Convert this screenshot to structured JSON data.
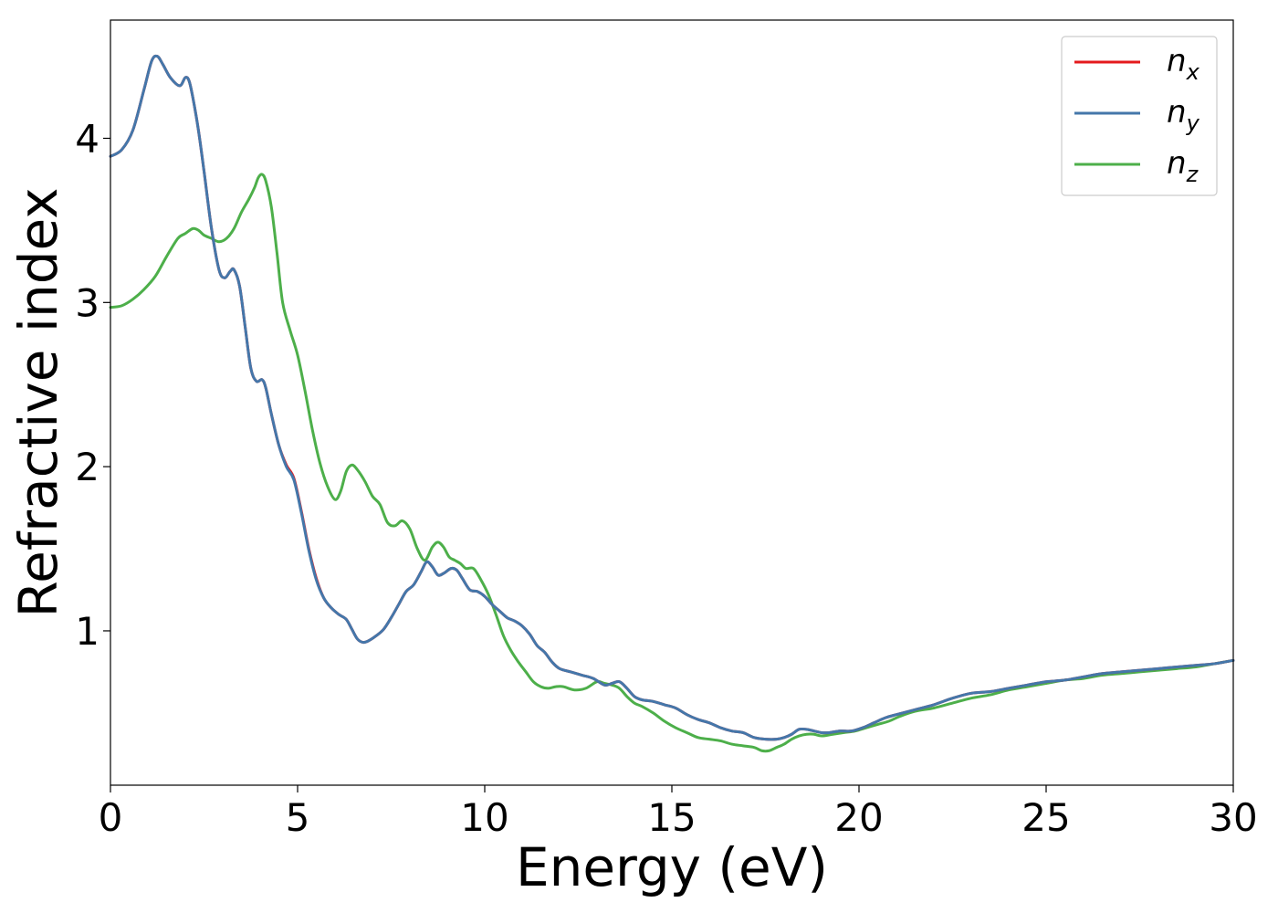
{
  "chart_data": {
    "type": "line",
    "xlabel": "Energy (eV)",
    "ylabel": "Refractive index",
    "xlim": [
      0,
      30
    ],
    "ylim": [
      0.06,
      4.72
    ],
    "xticks": [
      0,
      5,
      10,
      15,
      20,
      25,
      30
    ],
    "yticks": [
      1,
      2,
      3,
      4
    ],
    "grid": false,
    "legend_position": "top-right",
    "series": [
      {
        "name": "n_x",
        "symbol": "n",
        "sub": "x",
        "color": "#e41a1c",
        "x": [
          0,
          0.3,
          0.6,
          0.9,
          1.1,
          1.25,
          1.4,
          1.6,
          1.85,
          2.0,
          2.1,
          2.2,
          2.35,
          2.5,
          2.7,
          2.9,
          3.05,
          3.2,
          3.3,
          3.45,
          3.6,
          3.75,
          3.9,
          4.05,
          4.15,
          4.3,
          4.5,
          4.7,
          4.9,
          5.1,
          5.3,
          5.5,
          5.7,
          5.9,
          6.1,
          6.3,
          6.45,
          6.6,
          6.75,
          6.9,
          7.1,
          7.3,
          7.5,
          7.7,
          7.9,
          8.1,
          8.3,
          8.45,
          8.6,
          8.75,
          8.9,
          9.1,
          9.25,
          9.4,
          9.6,
          9.8,
          10.0,
          10.2,
          10.4,
          10.6,
          10.8,
          11.0,
          11.2,
          11.4,
          11.6,
          11.8,
          12.0,
          12.3,
          12.6,
          12.9,
          13.2,
          13.4,
          13.6,
          13.8,
          14.0,
          14.2,
          14.5,
          14.8,
          15.1,
          15.4,
          15.7,
          16.0,
          16.3,
          16.6,
          16.9,
          17.2,
          17.5,
          17.8,
          18.0,
          18.2,
          18.4,
          18.6,
          18.8,
          19.0,
          19.2,
          19.5,
          19.8,
          20.1,
          20.4,
          20.7,
          21.0,
          21.5,
          22.0,
          22.5,
          23.0,
          23.5,
          24.0,
          24.5,
          25.0,
          25.5,
          26.0,
          26.5,
          27.0,
          27.5,
          28.0,
          28.5,
          29.0,
          29.5,
          30.0
        ],
        "y": [
          3.89,
          3.93,
          4.05,
          4.3,
          4.47,
          4.5,
          4.45,
          4.37,
          4.32,
          4.37,
          4.35,
          4.25,
          4.05,
          3.8,
          3.45,
          3.2,
          3.15,
          3.19,
          3.2,
          3.1,
          2.85,
          2.6,
          2.52,
          2.53,
          2.48,
          2.32,
          2.13,
          2.01,
          1.93,
          1.73,
          1.5,
          1.32,
          1.2,
          1.14,
          1.1,
          1.07,
          1.01,
          0.95,
          0.93,
          0.94,
          0.97,
          1.01,
          1.08,
          1.16,
          1.24,
          1.28,
          1.36,
          1.42,
          1.39,
          1.34,
          1.35,
          1.38,
          1.37,
          1.32,
          1.25,
          1.24,
          1.21,
          1.16,
          1.12,
          1.08,
          1.06,
          1.03,
          0.98,
          0.91,
          0.87,
          0.81,
          0.77,
          0.75,
          0.73,
          0.71,
          0.67,
          0.68,
          0.69,
          0.65,
          0.6,
          0.58,
          0.57,
          0.55,
          0.53,
          0.49,
          0.46,
          0.44,
          0.41,
          0.39,
          0.38,
          0.35,
          0.34,
          0.34,
          0.35,
          0.37,
          0.4,
          0.4,
          0.39,
          0.38,
          0.38,
          0.39,
          0.39,
          0.41,
          0.44,
          0.47,
          0.49,
          0.52,
          0.55,
          0.59,
          0.62,
          0.63,
          0.65,
          0.67,
          0.69,
          0.7,
          0.72,
          0.74,
          0.75,
          0.76,
          0.77,
          0.78,
          0.79,
          0.8,
          0.82
        ]
      },
      {
        "name": "n_y",
        "symbol": "n",
        "sub": "y",
        "color": "#4477aa",
        "x": [
          0,
          0.3,
          0.6,
          0.9,
          1.1,
          1.25,
          1.4,
          1.6,
          1.85,
          2.0,
          2.1,
          2.2,
          2.35,
          2.5,
          2.7,
          2.9,
          3.05,
          3.2,
          3.3,
          3.45,
          3.6,
          3.75,
          3.9,
          4.05,
          4.15,
          4.3,
          4.5,
          4.7,
          4.9,
          5.1,
          5.3,
          5.5,
          5.7,
          5.9,
          6.1,
          6.3,
          6.45,
          6.6,
          6.75,
          6.9,
          7.1,
          7.3,
          7.5,
          7.7,
          7.9,
          8.1,
          8.3,
          8.45,
          8.6,
          8.75,
          8.9,
          9.1,
          9.25,
          9.4,
          9.6,
          9.8,
          10.0,
          10.2,
          10.4,
          10.6,
          10.8,
          11.0,
          11.2,
          11.4,
          11.6,
          11.8,
          12.0,
          12.3,
          12.6,
          12.9,
          13.2,
          13.4,
          13.6,
          13.8,
          14.0,
          14.2,
          14.5,
          14.8,
          15.1,
          15.4,
          15.7,
          16.0,
          16.3,
          16.6,
          16.9,
          17.2,
          17.5,
          17.8,
          18.0,
          18.2,
          18.4,
          18.6,
          18.8,
          19.0,
          19.2,
          19.5,
          19.8,
          20.1,
          20.4,
          20.7,
          21.0,
          21.5,
          22.0,
          22.5,
          23.0,
          23.5,
          24.0,
          24.5,
          25.0,
          25.5,
          26.0,
          26.5,
          27.0,
          27.5,
          28.0,
          28.5,
          29.0,
          29.5,
          30.0
        ],
        "y": [
          3.89,
          3.93,
          4.05,
          4.3,
          4.47,
          4.5,
          4.45,
          4.37,
          4.32,
          4.37,
          4.35,
          4.25,
          4.05,
          3.8,
          3.45,
          3.2,
          3.15,
          3.19,
          3.2,
          3.1,
          2.85,
          2.6,
          2.52,
          2.53,
          2.48,
          2.32,
          2.13,
          2.0,
          1.92,
          1.72,
          1.49,
          1.31,
          1.2,
          1.14,
          1.1,
          1.07,
          1.01,
          0.95,
          0.93,
          0.94,
          0.97,
          1.01,
          1.08,
          1.16,
          1.24,
          1.28,
          1.36,
          1.42,
          1.39,
          1.34,
          1.35,
          1.38,
          1.37,
          1.32,
          1.25,
          1.24,
          1.21,
          1.16,
          1.12,
          1.08,
          1.06,
          1.03,
          0.98,
          0.91,
          0.87,
          0.81,
          0.77,
          0.75,
          0.73,
          0.71,
          0.67,
          0.68,
          0.69,
          0.65,
          0.6,
          0.58,
          0.57,
          0.55,
          0.53,
          0.49,
          0.46,
          0.44,
          0.41,
          0.39,
          0.38,
          0.35,
          0.34,
          0.34,
          0.35,
          0.37,
          0.4,
          0.4,
          0.39,
          0.38,
          0.38,
          0.39,
          0.39,
          0.41,
          0.44,
          0.47,
          0.49,
          0.52,
          0.55,
          0.59,
          0.62,
          0.63,
          0.65,
          0.67,
          0.69,
          0.7,
          0.72,
          0.74,
          0.75,
          0.76,
          0.77,
          0.78,
          0.79,
          0.8,
          0.82
        ]
      },
      {
        "name": "n_z",
        "symbol": "n",
        "sub": "z",
        "color": "#4daf4a",
        "x": [
          0,
          0.3,
          0.6,
          0.9,
          1.2,
          1.5,
          1.8,
          2.0,
          2.2,
          2.35,
          2.5,
          2.7,
          2.9,
          3.1,
          3.3,
          3.5,
          3.7,
          3.85,
          3.95,
          4.05,
          4.15,
          4.3,
          4.45,
          4.6,
          4.8,
          5.0,
          5.2,
          5.4,
          5.6,
          5.8,
          6.0,
          6.15,
          6.3,
          6.45,
          6.6,
          6.8,
          7.0,
          7.2,
          7.4,
          7.6,
          7.8,
          8.0,
          8.2,
          8.4,
          8.6,
          8.75,
          8.9,
          9.05,
          9.2,
          9.35,
          9.5,
          9.7,
          9.9,
          10.1,
          10.3,
          10.5,
          10.7,
          10.9,
          11.1,
          11.3,
          11.5,
          11.7,
          11.9,
          12.1,
          12.4,
          12.7,
          13.0,
          13.2,
          13.4,
          13.6,
          13.8,
          14.0,
          14.2,
          14.5,
          14.8,
          15.1,
          15.4,
          15.7,
          16.0,
          16.3,
          16.6,
          16.9,
          17.2,
          17.4,
          17.6,
          17.8,
          18.0,
          18.2,
          18.4,
          18.6,
          18.8,
          19.0,
          19.3,
          19.6,
          19.9,
          20.2,
          20.5,
          20.8,
          21.1,
          21.5,
          22.0,
          22.5,
          23.0,
          23.5,
          24.0,
          24.5,
          25.0,
          25.5,
          26.0,
          26.5,
          27.0,
          27.5,
          28.0,
          28.5,
          29.0,
          29.5,
          30.0
        ],
        "y": [
          2.97,
          2.98,
          3.02,
          3.08,
          3.16,
          3.28,
          3.39,
          3.42,
          3.45,
          3.44,
          3.41,
          3.39,
          3.37,
          3.39,
          3.45,
          3.55,
          3.63,
          3.7,
          3.76,
          3.78,
          3.74,
          3.58,
          3.3,
          3.0,
          2.83,
          2.68,
          2.46,
          2.22,
          2.02,
          1.88,
          1.8,
          1.85,
          1.97,
          2.01,
          1.98,
          1.91,
          1.82,
          1.77,
          1.66,
          1.64,
          1.67,
          1.62,
          1.5,
          1.43,
          1.51,
          1.54,
          1.51,
          1.45,
          1.43,
          1.41,
          1.38,
          1.38,
          1.31,
          1.22,
          1.1,
          0.97,
          0.88,
          0.81,
          0.75,
          0.69,
          0.66,
          0.65,
          0.66,
          0.66,
          0.64,
          0.65,
          0.69,
          0.68,
          0.67,
          0.65,
          0.6,
          0.56,
          0.54,
          0.5,
          0.45,
          0.41,
          0.38,
          0.35,
          0.34,
          0.33,
          0.31,
          0.3,
          0.29,
          0.27,
          0.27,
          0.29,
          0.31,
          0.34,
          0.36,
          0.37,
          0.37,
          0.36,
          0.37,
          0.38,
          0.39,
          0.41,
          0.43,
          0.45,
          0.48,
          0.51,
          0.53,
          0.56,
          0.59,
          0.61,
          0.64,
          0.66,
          0.68,
          0.7,
          0.71,
          0.73,
          0.74,
          0.75,
          0.76,
          0.77,
          0.78,
          0.8,
          0.82
        ]
      }
    ]
  }
}
